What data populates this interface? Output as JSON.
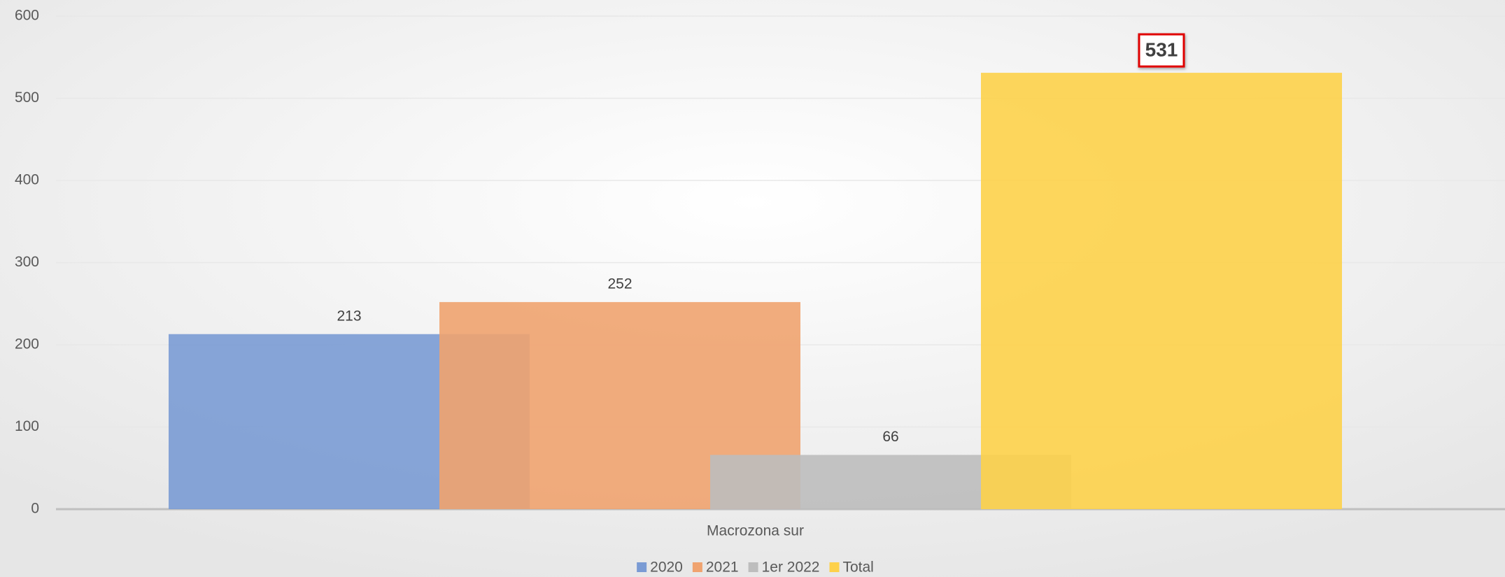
{
  "chart_data": {
    "type": "bar",
    "categories": [
      "Macrozona sur"
    ],
    "series": [
      {
        "name": "2020",
        "color": "#7a9bd4",
        "values": [
          213
        ]
      },
      {
        "name": "2021",
        "color": "#f0a36f",
        "values": [
          252
        ]
      },
      {
        "name": "1er 2022",
        "color": "#bdbdbd",
        "values": [
          66
        ]
      },
      {
        "name": "Total",
        "color": "#fdd14a",
        "values": [
          531
        ]
      }
    ],
    "ylim": [
      0,
      600
    ],
    "yticks": [
      0,
      100,
      200,
      300,
      400,
      500,
      600
    ],
    "grid": true,
    "legend": "bottom"
  }
}
